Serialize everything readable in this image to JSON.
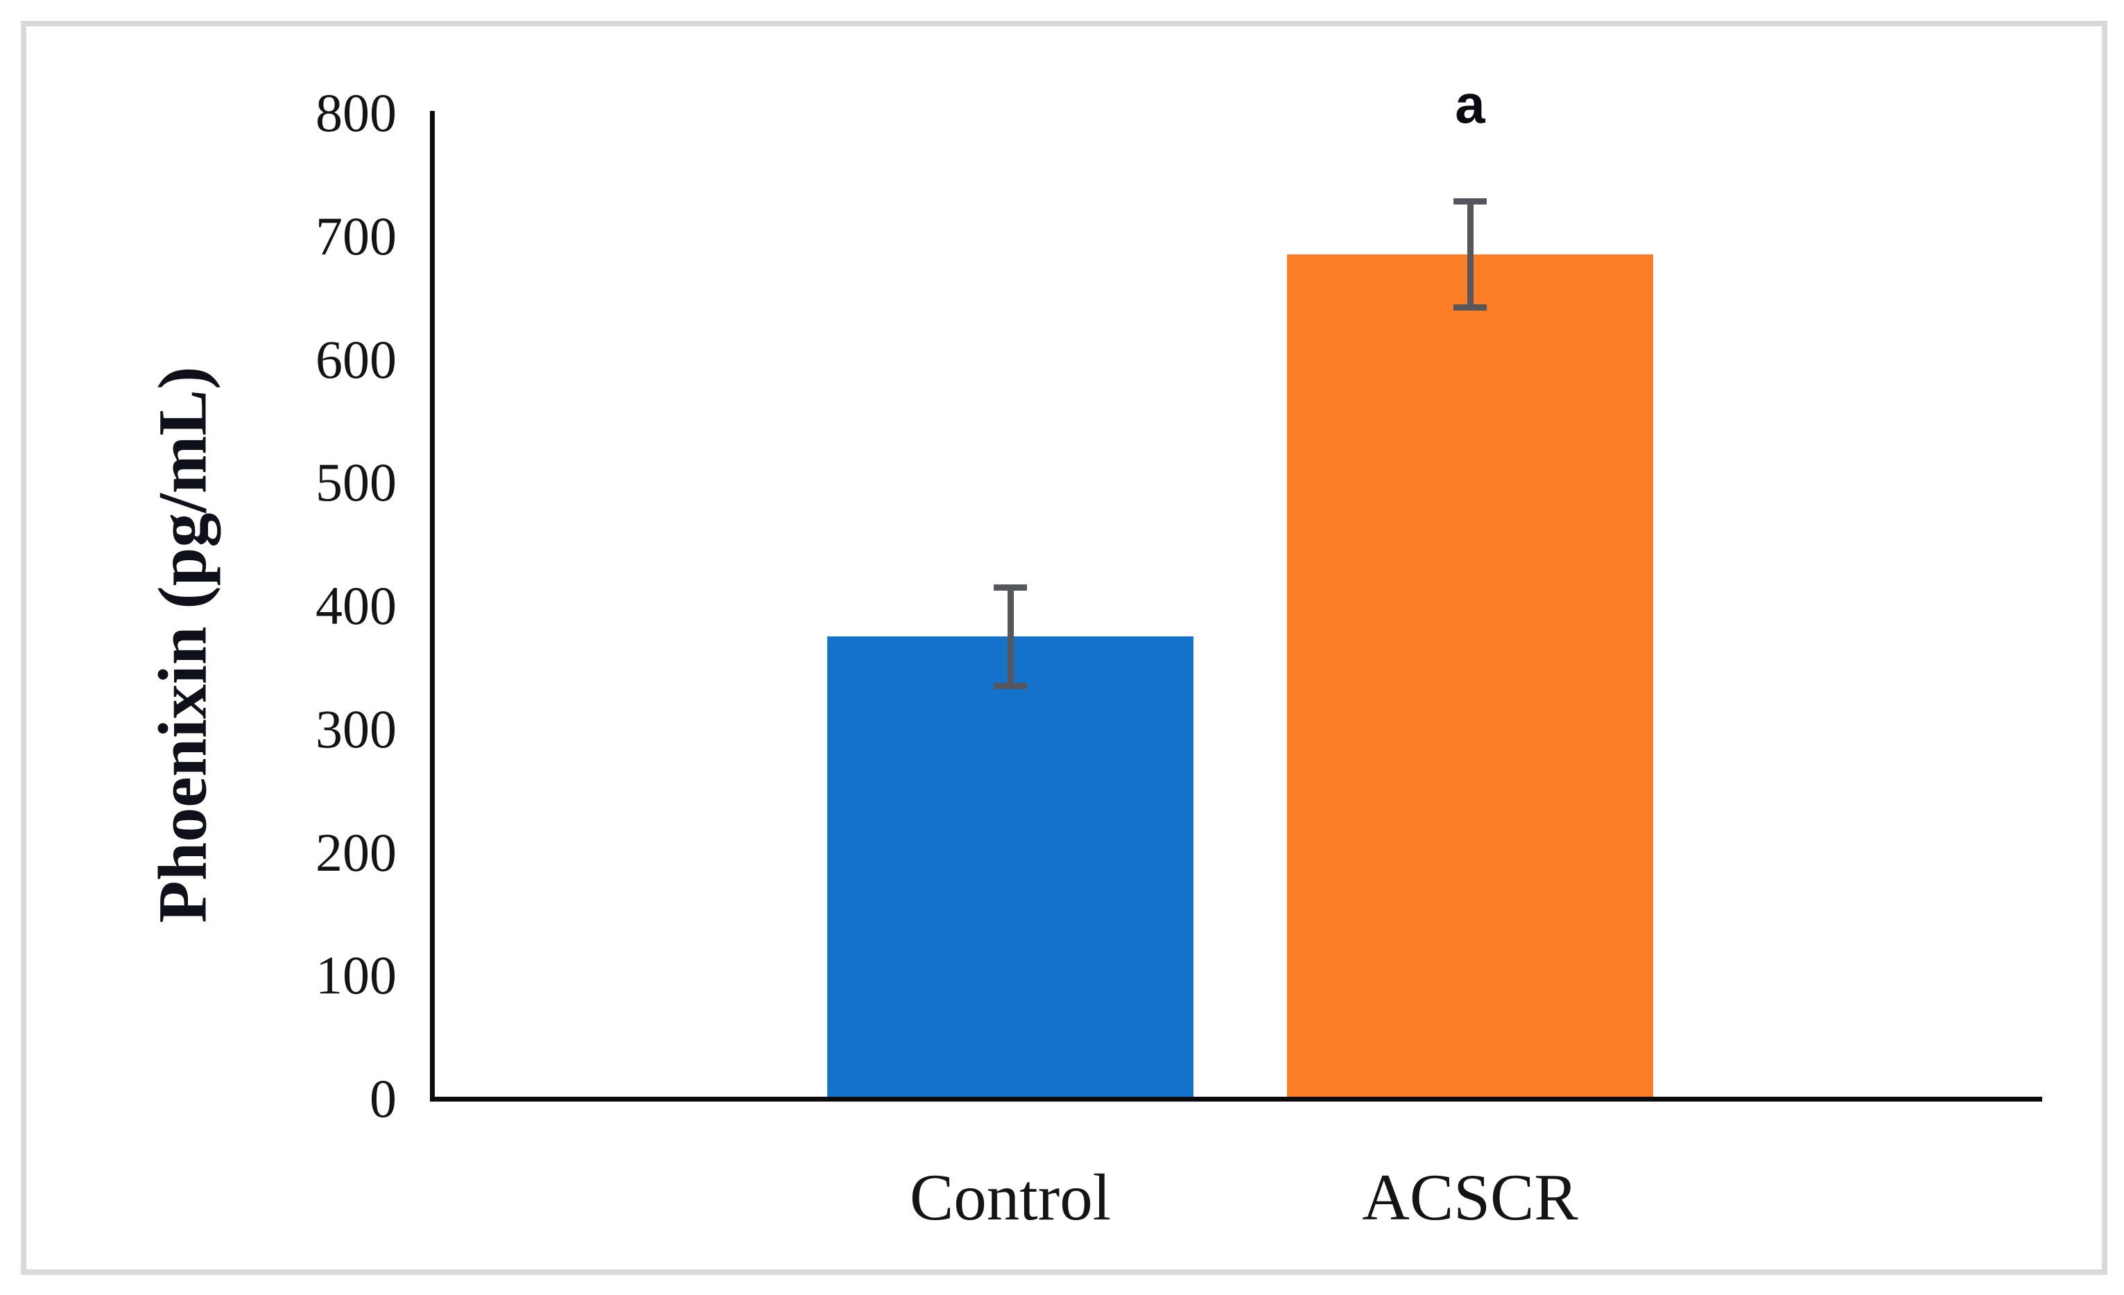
{
  "figure": {
    "background_color": "#ffffff",
    "frame_color": "#d9d9d9"
  },
  "chart_data": {
    "type": "bar",
    "categories": [
      "Control",
      "ACSCR"
    ],
    "series": [
      {
        "name": "Phoenixin",
        "values": [
          375,
          685
        ],
        "errors": [
          40,
          43
        ]
      }
    ],
    "bar_colors": [
      "#1572ca",
      "#fb7e26"
    ],
    "error_bar_color": "#56575c",
    "axis_color": "#0a0a0a",
    "title": "",
    "xlabel": "",
    "ylabel": "Phoenixin (pg/mL)",
    "ylim": [
      0,
      800
    ],
    "ytick_interval": 100,
    "yticks": [
      0,
      100,
      200,
      300,
      400,
      500,
      600,
      700,
      800
    ],
    "grid": false,
    "legend": false,
    "annotations": [
      {
        "text": "a",
        "category": "ACSCR",
        "position": "above-error-bar"
      }
    ]
  }
}
